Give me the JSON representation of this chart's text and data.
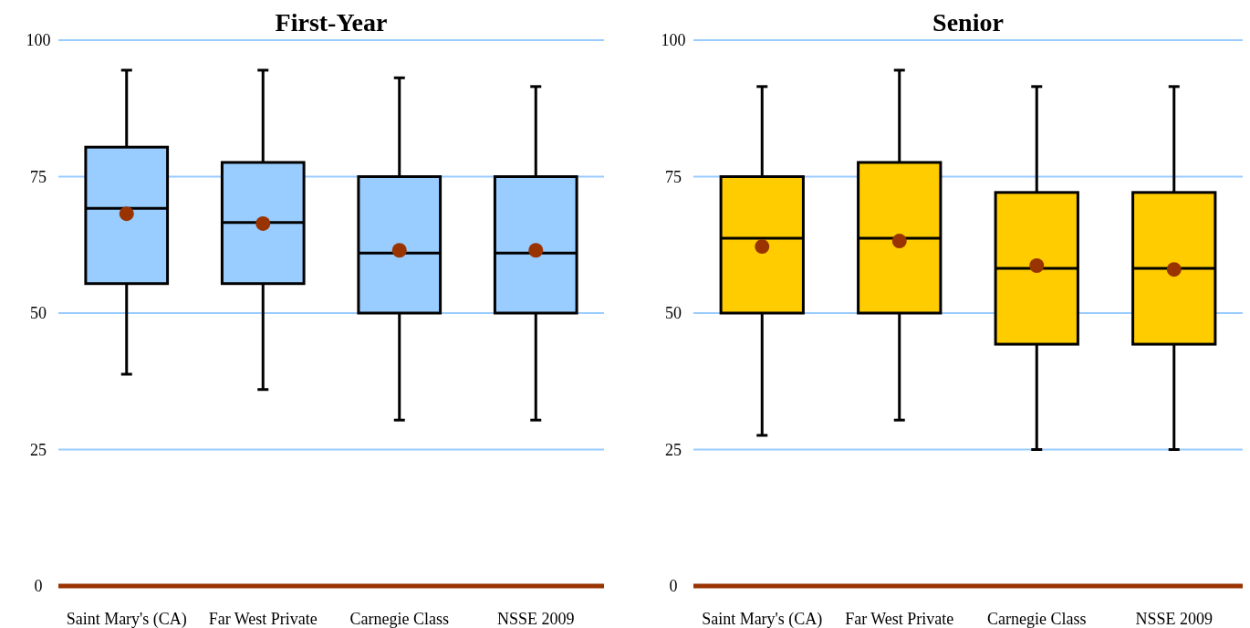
{
  "chart_data": [
    {
      "type": "box",
      "title": "First-Year",
      "categories": [
        "Saint Mary's (CA)",
        "Far West Private",
        "Carnegie Class",
        "NSSE 2009"
      ],
      "ylim": [
        0,
        100
      ],
      "yticks": [
        0,
        25,
        50,
        75,
        100
      ],
      "grid": "y",
      "marker": "circle",
      "series": [
        {
          "color": "#99ccff",
          "boxes": [
            {
              "low": 38.8,
              "q1": 55.4,
              "median": 69.2,
              "q3": 80.4,
              "high": 94.5,
              "mean": 68.2
            },
            {
              "low": 36.0,
              "q1": 55.4,
              "median": 66.6,
              "q3": 77.6,
              "high": 94.5,
              "mean": 66.4
            },
            {
              "low": 30.4,
              "q1": 50,
              "median": 61.0,
              "q3": 75,
              "high": 93.1,
              "mean": 61.5
            },
            {
              "low": 30.4,
              "q1": 50,
              "median": 61.0,
              "q3": 75,
              "high": 91.5,
              "mean": 61.5
            }
          ]
        }
      ]
    },
    {
      "type": "box",
      "title": "Senior",
      "categories": [
        "Saint Mary's (CA)",
        "Far West Private",
        "Carnegie Class",
        "NSSE 2009"
      ],
      "ylim": [
        0,
        100
      ],
      "yticks": [
        0,
        25,
        50,
        75,
        100
      ],
      "grid": "y",
      "marker": "circle",
      "series": [
        {
          "color": "#ffcc00",
          "boxes": [
            {
              "low": 27.6,
              "q1": 50,
              "median": 63.7,
              "q3": 75,
              "high": 91.5,
              "mean": 62.2
            },
            {
              "low": 30.4,
              "q1": 50,
              "median": 63.7,
              "q3": 77.6,
              "high": 94.5,
              "mean": 63.2
            },
            {
              "low": 25,
              "q1": 44.3,
              "median": 58.2,
              "q3": 72.1,
              "high": 91.5,
              "mean": 58.7
            },
            {
              "low": 25,
              "q1": 44.3,
              "median": 58.2,
              "q3": 72.1,
              "high": 91.5,
              "mean": 58.0
            }
          ]
        }
      ]
    }
  ]
}
